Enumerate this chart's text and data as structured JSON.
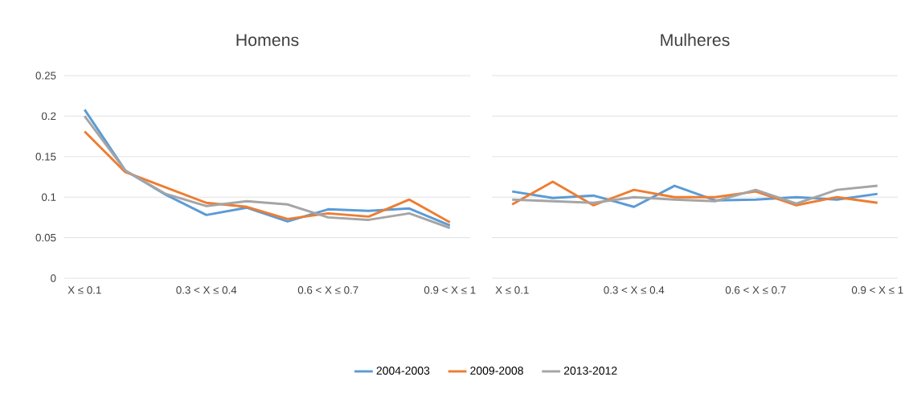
{
  "chart_data": [
    {
      "type": "line",
      "title": "Homens",
      "categories": [
        "X ≤ 0.1",
        null,
        null,
        "0.3 < X ≤ 0.4",
        null,
        null,
        "0.6 < X ≤ 0.7",
        null,
        null,
        "0.9 < X ≤ 1"
      ],
      "ylim": [
        0,
        0.25
      ],
      "yticks": [
        0,
        0.05,
        0.1,
        0.15,
        0.2,
        0.25
      ],
      "grid": "y",
      "legend": "bottom",
      "series": [
        {
          "name": "2004-2003",
          "color": "#5b9bd5",
          "values": [
            0.208,
            0.133,
            0.103,
            0.078,
            0.087,
            0.07,
            0.085,
            0.083,
            0.086,
            0.065
          ]
        },
        {
          "name": "2009-2008",
          "color": "#ed7d31",
          "values": [
            0.181,
            0.131,
            0.112,
            0.093,
            0.088,
            0.073,
            0.08,
            0.076,
            0.097,
            0.069
          ]
        },
        {
          "name": "2013-2012",
          "color": "#a5a5a5",
          "values": [
            0.2,
            0.133,
            0.104,
            0.089,
            0.095,
            0.091,
            0.075,
            0.072,
            0.08,
            0.062
          ]
        }
      ]
    },
    {
      "type": "line",
      "title": "Mulheres",
      "categories": [
        "X ≤ 0.1",
        null,
        null,
        "0.3 < X ≤ 0.4",
        null,
        null,
        "0.6 < X ≤ 0.7",
        null,
        null,
        "0.9 < X ≤ 1"
      ],
      "ylim": [
        0,
        0.25
      ],
      "yticks": [
        0,
        0.05,
        0.1,
        0.15,
        0.2,
        0.25
      ],
      "grid": "y",
      "tick_labels": "x",
      "series": [
        {
          "color": "#5b9bd5",
          "values": [
            0.107,
            0.099,
            0.102,
            0.088,
            0.114,
            0.096,
            0.097,
            0.1,
            0.097,
            0.104
          ]
        },
        {
          "color": "#ed7d31",
          "values": [
            0.091,
            0.119,
            0.09,
            0.109,
            0.1,
            0.1,
            0.107,
            0.09,
            0.1,
            0.093
          ]
        },
        {
          "color": "#a5a5a5",
          "values": [
            0.097,
            0.095,
            0.093,
            0.1,
            0.097,
            0.095,
            0.109,
            0.092,
            0.109,
            0.114
          ]
        }
      ]
    }
  ]
}
